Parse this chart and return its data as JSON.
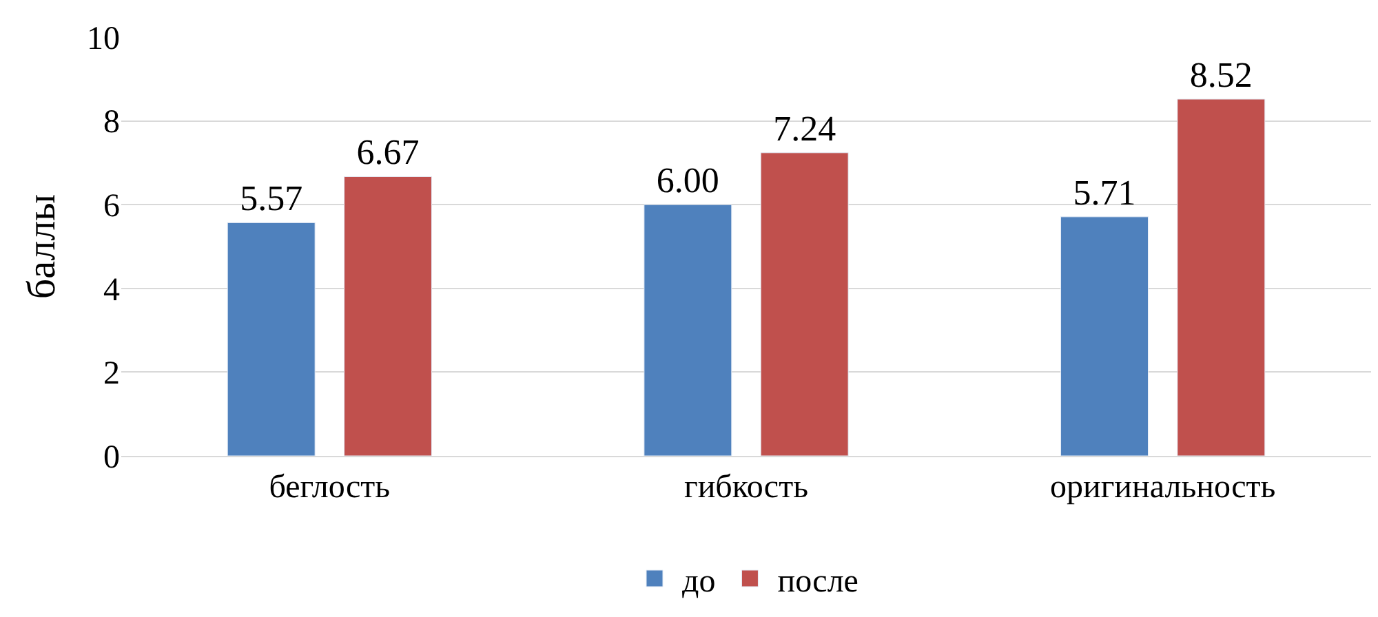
{
  "chart_data": {
    "type": "bar",
    "ylabel": "баллы",
    "categories": [
      "беглость",
      "гибкость",
      "оригинальность"
    ],
    "series": [
      {
        "name": "до",
        "color": "#4f81bd",
        "values": [
          5.57,
          6.0,
          5.71
        ],
        "value_labels": [
          "5.57",
          "6.00",
          "5.71"
        ]
      },
      {
        "name": "после",
        "color": "#c0504d",
        "values": [
          6.67,
          7.24,
          8.52
        ],
        "value_labels": [
          "6.67",
          "7.24",
          "8.52"
        ]
      }
    ],
    "ylim": [
      0,
      10
    ],
    "yticks": [
      0,
      2,
      4,
      6,
      8,
      10
    ],
    "grid": "y",
    "legend": "bottom"
  }
}
